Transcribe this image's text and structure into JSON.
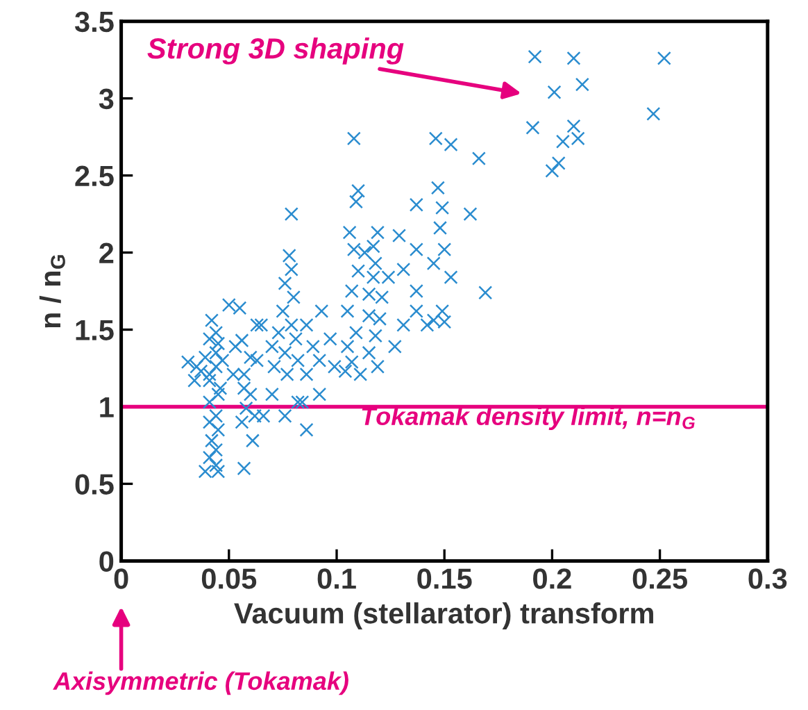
{
  "chart_data": {
    "type": "scatter",
    "xlabel": "Vacuum (stellarator) transform",
    "ylabel": "n / n$_{G}$",
    "xlim": [
      0,
      0.3
    ],
    "ylim": [
      0,
      3.5
    ],
    "xticks": [
      0,
      0.05,
      0.1,
      0.15,
      0.2,
      0.25,
      0.3
    ],
    "yticks": [
      0,
      0.5,
      1,
      1.5,
      2,
      2.5,
      3,
      3.5
    ],
    "grid": false,
    "marker": "cross",
    "ref_lines": [
      {
        "axis": "y",
        "value": 1,
        "label": "Tokamak density limit, n=n$_{G}$",
        "color": "#e6007e"
      }
    ],
    "annotations": [
      "Strong 3D shaping",
      "Axisymmetric (Tokamak)"
    ],
    "series": [
      {
        "color": "#2a8ccf",
        "x": [
          0.192,
          0.21,
          0.214,
          0.201,
          0.252,
          0.247,
          0.191,
          0.21,
          0.205,
          0.212,
          0.2,
          0.203,
          0.166,
          0.146,
          0.153,
          0.147,
          0.108,
          0.149,
          0.137,
          0.162,
          0.148,
          0.15,
          0.137,
          0.145,
          0.153,
          0.169,
          0.137,
          0.149,
          0.145,
          0.142,
          0.15,
          0.131,
          0.129,
          0.109,
          0.11,
          0.119,
          0.117,
          0.106,
          0.108,
          0.113,
          0.118,
          0.11,
          0.117,
          0.124,
          0.107,
          0.115,
          0.121,
          0.105,
          0.115,
          0.12,
          0.109,
          0.118,
          0.105,
          0.115,
          0.107,
          0.119,
          0.104,
          0.111,
          0.131,
          0.137,
          0.127,
          0.093,
          0.097,
          0.092,
          0.079,
          0.078,
          0.079,
          0.076,
          0.08,
          0.075,
          0.079,
          0.073,
          0.081,
          0.07,
          0.076,
          0.082,
          0.071,
          0.077,
          0.086,
          0.089,
          0.086,
          0.092,
          0.082,
          0.076,
          0.086,
          0.07,
          0.065,
          0.063,
          0.066,
          0.055,
          0.063,
          0.06,
          0.053,
          0.057,
          0.057,
          0.06,
          0.058,
          0.062,
          0.056,
          0.061,
          0.057,
          0.047,
          0.052,
          0.044,
          0.056,
          0.041,
          0.046,
          0.042,
          0.044,
          0.041,
          0.045,
          0.039,
          0.044,
          0.041,
          0.045,
          0.041,
          0.044,
          0.041,
          0.045,
          0.042,
          0.044,
          0.041,
          0.044,
          0.045,
          0.039,
          0.031,
          0.035,
          0.034,
          0.037,
          0.05,
          0.084,
          0.099
        ],
        "values": [
          3.27,
          3.26,
          3.09,
          3.04,
          3.26,
          2.9,
          2.81,
          2.82,
          2.72,
          2.74,
          2.53,
          2.58,
          2.61,
          2.74,
          2.7,
          2.42,
          2.74,
          2.29,
          2.31,
          2.25,
          2.16,
          2.02,
          2.02,
          1.93,
          1.84,
          1.74,
          1.75,
          1.62,
          1.56,
          1.53,
          1.55,
          1.89,
          2.11,
          2.33,
          2.4,
          2.13,
          2.04,
          2.13,
          2.02,
          2.0,
          1.93,
          1.88,
          1.84,
          1.84,
          1.75,
          1.73,
          1.71,
          1.62,
          1.59,
          1.57,
          1.48,
          1.46,
          1.39,
          1.35,
          1.29,
          1.26,
          1.23,
          1.21,
          1.53,
          1.62,
          1.39,
          1.62,
          1.44,
          1.3,
          2.25,
          1.98,
          1.89,
          1.8,
          1.71,
          1.62,
          1.53,
          1.48,
          1.44,
          1.39,
          1.35,
          1.3,
          1.26,
          1.21,
          1.21,
          1.39,
          1.53,
          1.08,
          1.03,
          0.94,
          0.85,
          1.08,
          1.53,
          1.3,
          0.94,
          1.64,
          1.53,
          1.32,
          1.39,
          1.21,
          1.12,
          1.08,
          0.99,
          0.94,
          0.9,
          0.78,
          0.6,
          1.3,
          1.21,
          1.35,
          1.43,
          1.21,
          1.12,
          1.56,
          1.48,
          1.44,
          1.41,
          1.32,
          1.26,
          1.17,
          1.08,
          1.03,
          0.94,
          0.9,
          0.85,
          0.78,
          0.72,
          0.67,
          0.62,
          0.58,
          0.58,
          1.29,
          1.26,
          1.17,
          1.23,
          1.66,
          1.03,
          1.26
        ]
      }
    ]
  }
}
